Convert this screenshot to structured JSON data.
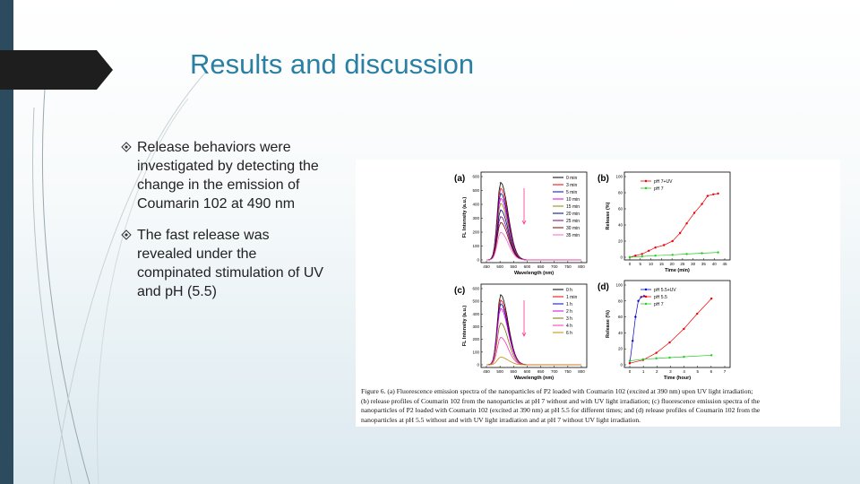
{
  "slide": {
    "title": "Results and discussion",
    "bullets": [
      [
        "Release behaviors were",
        "investigated by detecting the",
        "change in the emission of",
        "Coumarin 102 at 490 nm"
      ],
      [
        "The fast release was",
        "revealed under the",
        "compinated stimulation of UV",
        "and pH (5.5)"
      ]
    ]
  },
  "figure": {
    "panels": [
      {
        "label": "(a)",
        "kind": "spectra",
        "ylabel": "FL Intensity (a.u.)",
        "xlabel": "Wavelength (nm)",
        "xticks": [
          "450",
          "500",
          "550",
          "600",
          "650",
          "700",
          "750",
          "800"
        ],
        "yticks": [
          "0",
          "100",
          "200",
          "300",
          "400",
          "500",
          "600"
        ],
        "legend": [
          "0 min",
          "3 min",
          "5 min",
          "10 min",
          "15 min",
          "20 min",
          "25 min",
          "30 min",
          "35 min"
        ]
      },
      {
        "label": "(b)",
        "kind": "release-b",
        "ylabel": "Release (%)",
        "xlabel": "Time (min)",
        "xticks": [
          "0",
          "5",
          "10",
          "15",
          "20",
          "25",
          "30",
          "35",
          "40",
          "45"
        ],
        "yticks": [
          "0",
          "20",
          "40",
          "60",
          "80",
          "100"
        ],
        "legend": [
          "pH 7+UV",
          "pH 7"
        ]
      },
      {
        "label": "(c)",
        "kind": "spectra-c",
        "ylabel": "FL Intensity (a.u.)",
        "xlabel": "Wavelength (nm)",
        "xticks": [
          "450",
          "500",
          "550",
          "600",
          "650",
          "700",
          "750",
          "800"
        ],
        "yticks": [
          "0",
          "100",
          "200",
          "300",
          "400",
          "500",
          "600"
        ],
        "legend": [
          "0 h",
          "1 min",
          "1 h",
          "2 h",
          "3 h",
          "4 h",
          "6 h"
        ]
      },
      {
        "label": "(d)",
        "kind": "release-d",
        "ylabel": "Release (%)",
        "xlabel": "Time (hour)",
        "xticks": [
          "0",
          "1",
          "2",
          "3",
          "4",
          "5",
          "6",
          "7"
        ],
        "yticks": [
          "0",
          "20",
          "40",
          "60",
          "80",
          "100"
        ],
        "legend": [
          "pH 5.5+UV",
          "pH 5.5",
          "pH 7"
        ]
      }
    ],
    "caption": [
      "Figure 6. (a) Fluorescence emission spectra of the nanoparticles of P2 loaded with Coumarin 102 (excited at 390 nm) upon UV light irradiation;",
      "(b) release profiles of Coumarin 102 from the nanoparticles at pH 7 without and with UV light irradiation; (c) fluorescence emission spectra of the",
      "nanoparticles of P2 loaded with Coumarin 102 (excited at 390 nm) at pH 5.5 for different times; and (d) release profiles of Coumarin 102 from the",
      "nanoparticles at pH 5.5 without and with UV light irradiation and at pH 7 without UV light irradiation."
    ]
  }
}
